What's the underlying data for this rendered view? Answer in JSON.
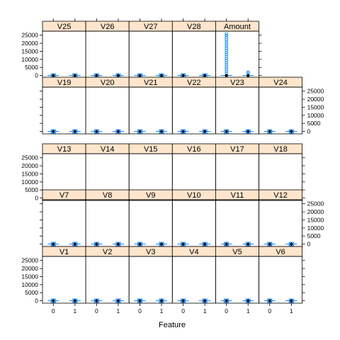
{
  "chart_data": {
    "type": "box",
    "xlabel": "Feature",
    "x_categories": [
      "0",
      "1"
    ],
    "y_ticks": [
      0,
      5000,
      10000,
      15000,
      20000,
      25000
    ],
    "ylim": [
      -1500,
      27500
    ],
    "layout": {
      "columns": 6,
      "rows": 5
    },
    "rows": [
      [
        "V25",
        "V26",
        "V27",
        "V28",
        "Amount",
        null
      ],
      [
        "V19",
        "V20",
        "V21",
        "V22",
        "V23",
        "V24"
      ],
      [
        "V13",
        "V14",
        "V15",
        "V16",
        "V17",
        "V18"
      ],
      [
        "V7",
        "V8",
        "V9",
        "V10",
        "V11",
        "V12"
      ],
      [
        "V1",
        "V2",
        "V3",
        "V4",
        "V5",
        "V6"
      ]
    ],
    "y_axis_side": [
      "left",
      "right",
      "left",
      "right",
      "left"
    ],
    "panels": {
      "Amount": {
        "class0": {
          "median": 22,
          "q1": 6,
          "q3": 77,
          "outliers_max": 25691
        },
        "class1": {
          "median": 9,
          "q1": 1,
          "q3": 105,
          "outliers_max": 2126
        }
      }
    },
    "colors": {
      "strip": "#ffe5cc",
      "box": "#0080ff",
      "median_dot": "#000000",
      "panel_border": "#000000"
    }
  }
}
